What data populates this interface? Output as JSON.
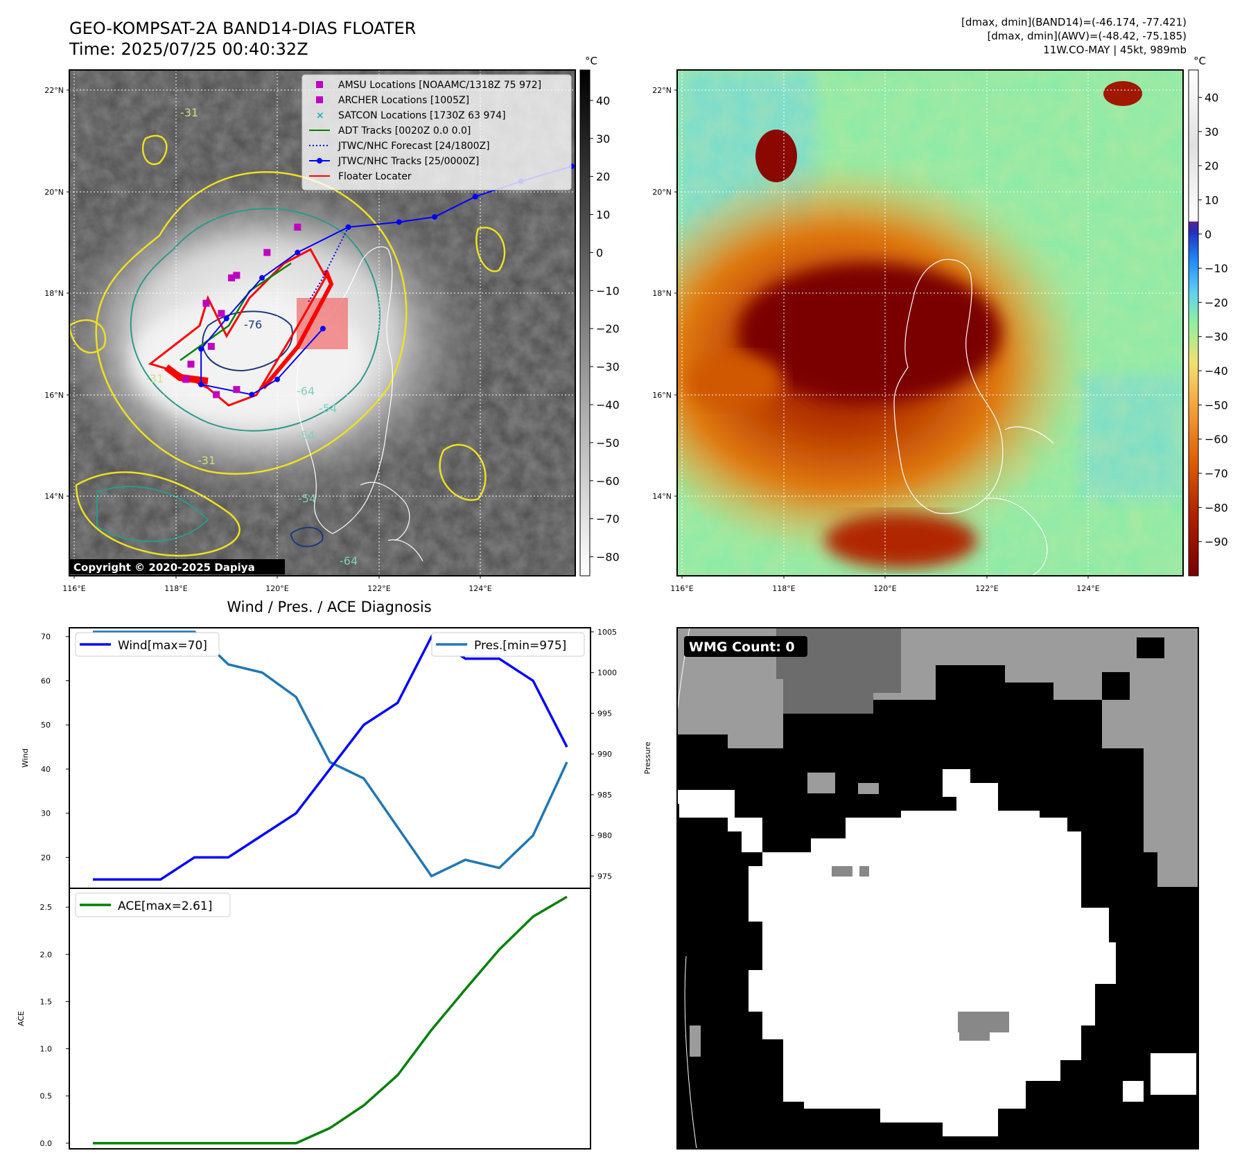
{
  "header": {
    "title": "GEO-KOMPSAT-2A BAND14-DIAS FLOATER",
    "time": "Time: 2025/07/25 00:40:32Z",
    "dmax_band14": "[dmax, dmin](BAND14)=(-46.174, -77.421)",
    "dmax_awv": "[dmax, dmin](AWV)=(-48.42, -75.185)",
    "storm": "11W.CO-MAY | 45kt, 989mb"
  },
  "maps": {
    "lon_ticks": [
      "116°E",
      "118°E",
      "120°E",
      "122°E",
      "124°E"
    ],
    "lat_ticks": [
      "22°N",
      "20°N",
      "18°N",
      "16°N",
      "14°N"
    ],
    "copyright": "Copyright © 2020-2025 Dapiya",
    "unit": "°C",
    "left_colorbar_ticks": [
      "40",
      "30",
      "20",
      "10",
      "0",
      "−10",
      "−20",
      "−30",
      "−40",
      "−50",
      "−60",
      "−70",
      "−80"
    ],
    "right_colorbar_ticks": [
      "40",
      "30",
      "20",
      "10",
      "0",
      "−10",
      "−20",
      "−30",
      "−40",
      "−50",
      "−60",
      "−70",
      "−80",
      "−90"
    ],
    "contour_labels": [
      "-31",
      "-54",
      "-64",
      "-76",
      "-31",
      "-54",
      "-31",
      "-54",
      "-64"
    ],
    "legend": [
      {
        "label": "AMSU Locations [NOAAMC/1318Z 75 972]",
        "marker": "square",
        "color": "#c000c0"
      },
      {
        "label": "ARCHER Locations [1005Z]",
        "marker": "square",
        "color": "#c000c0"
      },
      {
        "label": "SATCON Locations [1730Z 63 974]",
        "marker": "x",
        "color": "#20b0b0"
      },
      {
        "label": "ADT Tracks [0020Z 0.0 0.0]",
        "marker": "line",
        "color": "#008000"
      },
      {
        "label": "JTWC/NHC Forecast [24/1800Z]",
        "marker": "dotted",
        "color": "#0000ff"
      },
      {
        "label": "JTWC/NHC Tracks [25/0000Z]",
        "marker": "line-dot",
        "color": "#0000ff"
      },
      {
        "label": "Floater Locater",
        "marker": "line",
        "color": "#ff0000"
      }
    ],
    "track": [
      [
        125.8,
        20.5
      ],
      [
        124.8,
        20.2
      ],
      [
        123.9,
        19.9
      ],
      [
        123.1,
        19.5
      ],
      [
        122.4,
        19.4
      ],
      [
        121.4,
        19.3
      ],
      [
        120.4,
        18.8
      ],
      [
        119.7,
        18.3
      ],
      [
        119.0,
        17.5
      ],
      [
        118.5,
        16.9
      ],
      [
        118.5,
        16.2
      ],
      [
        119.5,
        16.0
      ],
      [
        120.0,
        16.3
      ],
      [
        120.9,
        17.3
      ]
    ],
    "forecast": [
      [
        121.4,
        19.3
      ],
      [
        121.2,
        18.9
      ],
      [
        120.9,
        18.3
      ],
      [
        120.6,
        17.8
      ]
    ],
    "amsu": [
      [
        120.4,
        19.3
      ],
      [
        119.8,
        18.8
      ],
      [
        119.2,
        18.35
      ],
      [
        119.1,
        18.3
      ],
      [
        118.6,
        17.8
      ],
      [
        118.9,
        17.6
      ],
      [
        118.7,
        16.95
      ],
      [
        118.3,
        16.6
      ],
      [
        118.2,
        16.3
      ],
      [
        118.8,
        16.0
      ],
      [
        119.2,
        16.1
      ]
    ]
  },
  "chart_data": [
    {
      "type": "line",
      "title": "Wind / Pres. / ACE Diagnosis",
      "ylabel": "Wind",
      "ylabel_right": "Pressure",
      "ylim": [
        13,
        72
      ],
      "ylim_right": [
        973.5,
        1005.5
      ],
      "yticks": [
        "20",
        "30",
        "40",
        "50",
        "60",
        "70"
      ],
      "yticks_right": [
        "975",
        "980",
        "985",
        "990",
        "995",
        "1000",
        "1005"
      ],
      "series": [
        {
          "name": "Wind[max=70]",
          "color": "#0000ff",
          "values": [
            15,
            15,
            15,
            20,
            20,
            25,
            30,
            40,
            50,
            55,
            70,
            65,
            65,
            60,
            45
          ]
        },
        {
          "name": "Pres.[min=975]",
          "color": "#1f77b4",
          "axis": "right",
          "values": [
            1005,
            1005,
            1005,
            1005,
            1001,
            1000,
            997,
            989,
            987,
            981,
            975,
            977,
            976,
            980,
            989
          ]
        }
      ]
    },
    {
      "type": "line",
      "ylabel": "ACE",
      "ylim": [
        -0.06,
        2.7
      ],
      "yticks": [
        "0.0",
        "0.5",
        "1.0",
        "1.5",
        "2.0",
        "2.5"
      ],
      "series": [
        {
          "name": "ACE[max=2.61]",
          "color": "#008000",
          "values": [
            0,
            0,
            0,
            0,
            0,
            0,
            0,
            0.16,
            0.4,
            0.72,
            1.2,
            1.63,
            2.05,
            2.4,
            2.61
          ]
        }
      ]
    }
  ],
  "wmg": {
    "label": "WMG Count: 0"
  }
}
